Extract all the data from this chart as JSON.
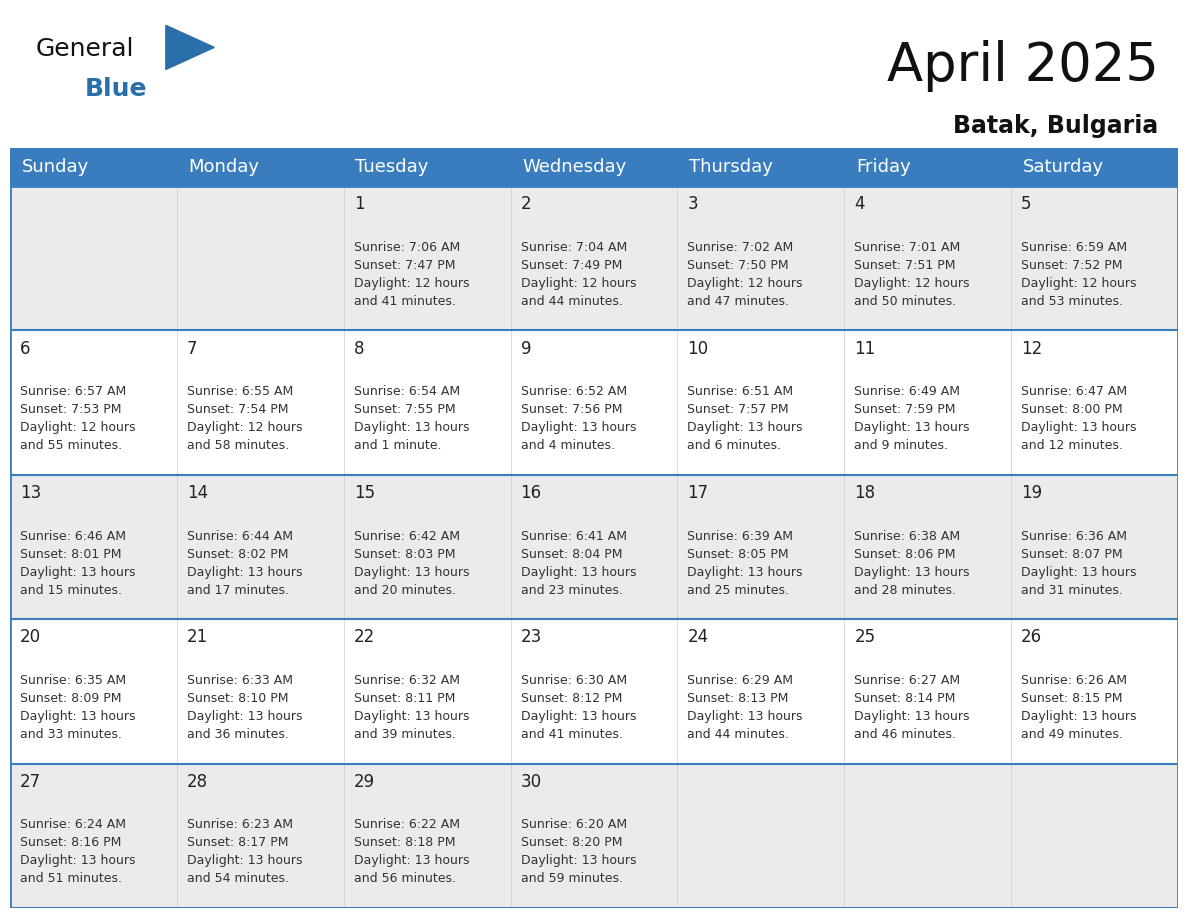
{
  "title": "April 2025",
  "subtitle": "Batak, Bulgaria",
  "header_bg": "#3a7dbf",
  "header_text_color": "#ffffff",
  "row_bg_light": "#ebebeb",
  "row_bg_white": "#ffffff",
  "separator_color": "#3a7dbf",
  "border_color": "#3a7dbf",
  "day_headers": [
    "Sunday",
    "Monday",
    "Tuesday",
    "Wednesday",
    "Thursday",
    "Friday",
    "Saturday"
  ],
  "title_fontsize": 38,
  "subtitle_fontsize": 17,
  "day_header_fontsize": 13,
  "cell_number_fontsize": 12,
  "cell_text_fontsize": 9,
  "logo_general_color": "#111111",
  "logo_blue_color": "#2a6faa",
  "calendar": [
    [
      {
        "day": null,
        "info": null
      },
      {
        "day": null,
        "info": null
      },
      {
        "day": 1,
        "info": "Sunrise: 7:06 AM\nSunset: 7:47 PM\nDaylight: 12 hours\nand 41 minutes."
      },
      {
        "day": 2,
        "info": "Sunrise: 7:04 AM\nSunset: 7:49 PM\nDaylight: 12 hours\nand 44 minutes."
      },
      {
        "day": 3,
        "info": "Sunrise: 7:02 AM\nSunset: 7:50 PM\nDaylight: 12 hours\nand 47 minutes."
      },
      {
        "day": 4,
        "info": "Sunrise: 7:01 AM\nSunset: 7:51 PM\nDaylight: 12 hours\nand 50 minutes."
      },
      {
        "day": 5,
        "info": "Sunrise: 6:59 AM\nSunset: 7:52 PM\nDaylight: 12 hours\nand 53 minutes."
      }
    ],
    [
      {
        "day": 6,
        "info": "Sunrise: 6:57 AM\nSunset: 7:53 PM\nDaylight: 12 hours\nand 55 minutes."
      },
      {
        "day": 7,
        "info": "Sunrise: 6:55 AM\nSunset: 7:54 PM\nDaylight: 12 hours\nand 58 minutes."
      },
      {
        "day": 8,
        "info": "Sunrise: 6:54 AM\nSunset: 7:55 PM\nDaylight: 13 hours\nand 1 minute."
      },
      {
        "day": 9,
        "info": "Sunrise: 6:52 AM\nSunset: 7:56 PM\nDaylight: 13 hours\nand 4 minutes."
      },
      {
        "day": 10,
        "info": "Sunrise: 6:51 AM\nSunset: 7:57 PM\nDaylight: 13 hours\nand 6 minutes."
      },
      {
        "day": 11,
        "info": "Sunrise: 6:49 AM\nSunset: 7:59 PM\nDaylight: 13 hours\nand 9 minutes."
      },
      {
        "day": 12,
        "info": "Sunrise: 6:47 AM\nSunset: 8:00 PM\nDaylight: 13 hours\nand 12 minutes."
      }
    ],
    [
      {
        "day": 13,
        "info": "Sunrise: 6:46 AM\nSunset: 8:01 PM\nDaylight: 13 hours\nand 15 minutes."
      },
      {
        "day": 14,
        "info": "Sunrise: 6:44 AM\nSunset: 8:02 PM\nDaylight: 13 hours\nand 17 minutes."
      },
      {
        "day": 15,
        "info": "Sunrise: 6:42 AM\nSunset: 8:03 PM\nDaylight: 13 hours\nand 20 minutes."
      },
      {
        "day": 16,
        "info": "Sunrise: 6:41 AM\nSunset: 8:04 PM\nDaylight: 13 hours\nand 23 minutes."
      },
      {
        "day": 17,
        "info": "Sunrise: 6:39 AM\nSunset: 8:05 PM\nDaylight: 13 hours\nand 25 minutes."
      },
      {
        "day": 18,
        "info": "Sunrise: 6:38 AM\nSunset: 8:06 PM\nDaylight: 13 hours\nand 28 minutes."
      },
      {
        "day": 19,
        "info": "Sunrise: 6:36 AM\nSunset: 8:07 PM\nDaylight: 13 hours\nand 31 minutes."
      }
    ],
    [
      {
        "day": 20,
        "info": "Sunrise: 6:35 AM\nSunset: 8:09 PM\nDaylight: 13 hours\nand 33 minutes."
      },
      {
        "day": 21,
        "info": "Sunrise: 6:33 AM\nSunset: 8:10 PM\nDaylight: 13 hours\nand 36 minutes."
      },
      {
        "day": 22,
        "info": "Sunrise: 6:32 AM\nSunset: 8:11 PM\nDaylight: 13 hours\nand 39 minutes."
      },
      {
        "day": 23,
        "info": "Sunrise: 6:30 AM\nSunset: 8:12 PM\nDaylight: 13 hours\nand 41 minutes."
      },
      {
        "day": 24,
        "info": "Sunrise: 6:29 AM\nSunset: 8:13 PM\nDaylight: 13 hours\nand 44 minutes."
      },
      {
        "day": 25,
        "info": "Sunrise: 6:27 AM\nSunset: 8:14 PM\nDaylight: 13 hours\nand 46 minutes."
      },
      {
        "day": 26,
        "info": "Sunrise: 6:26 AM\nSunset: 8:15 PM\nDaylight: 13 hours\nand 49 minutes."
      }
    ],
    [
      {
        "day": 27,
        "info": "Sunrise: 6:24 AM\nSunset: 8:16 PM\nDaylight: 13 hours\nand 51 minutes."
      },
      {
        "day": 28,
        "info": "Sunrise: 6:23 AM\nSunset: 8:17 PM\nDaylight: 13 hours\nand 54 minutes."
      },
      {
        "day": 29,
        "info": "Sunrise: 6:22 AM\nSunset: 8:18 PM\nDaylight: 13 hours\nand 56 minutes."
      },
      {
        "day": 30,
        "info": "Sunrise: 6:20 AM\nSunset: 8:20 PM\nDaylight: 13 hours\nand 59 minutes."
      },
      {
        "day": null,
        "info": null
      },
      {
        "day": null,
        "info": null
      },
      {
        "day": null,
        "info": null
      }
    ]
  ]
}
